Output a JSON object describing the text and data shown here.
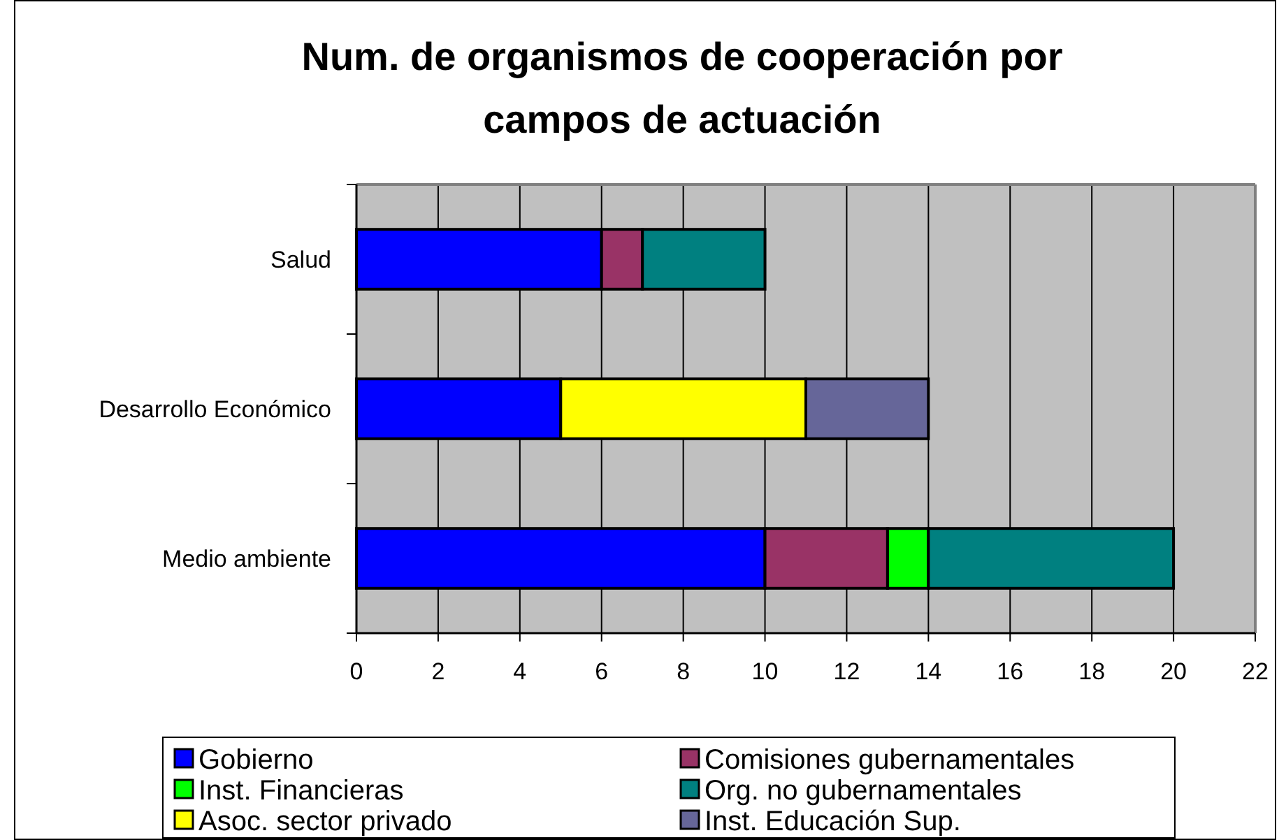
{
  "chart_data": {
    "type": "bar",
    "orientation": "horizontal",
    "stacked": true,
    "title": "Num. de organismos de cooperación por campos de actuación",
    "categories": [
      "Salud",
      "Desarrollo Económico",
      "Medio ambiente"
    ],
    "series": [
      {
        "name": "Gobierno",
        "color": "#0000ff",
        "values": [
          6,
          5,
          10
        ]
      },
      {
        "name": "Comisiones gubernamentales",
        "color": "#993366",
        "values": [
          1,
          null,
          3
        ]
      },
      {
        "name": "Inst. Financieras",
        "color": "#00ff00",
        "values": [
          null,
          null,
          1
        ]
      },
      {
        "name": "Org. no gubernamentales",
        "color": "#008080",
        "values": [
          3,
          null,
          6
        ]
      },
      {
        "name": "Asoc. sector privado",
        "color": "#ffff00",
        "values": [
          null,
          6,
          null
        ]
      },
      {
        "name": "Inst. Educación Sup.",
        "color": "#666699",
        "values": [
          null,
          3,
          null
        ]
      }
    ],
    "xlim": [
      0,
      22
    ],
    "xticks": [
      0,
      2,
      4,
      6,
      8,
      10,
      12,
      14,
      16,
      18,
      20,
      22
    ],
    "grid": "x",
    "legend": "bottom"
  }
}
